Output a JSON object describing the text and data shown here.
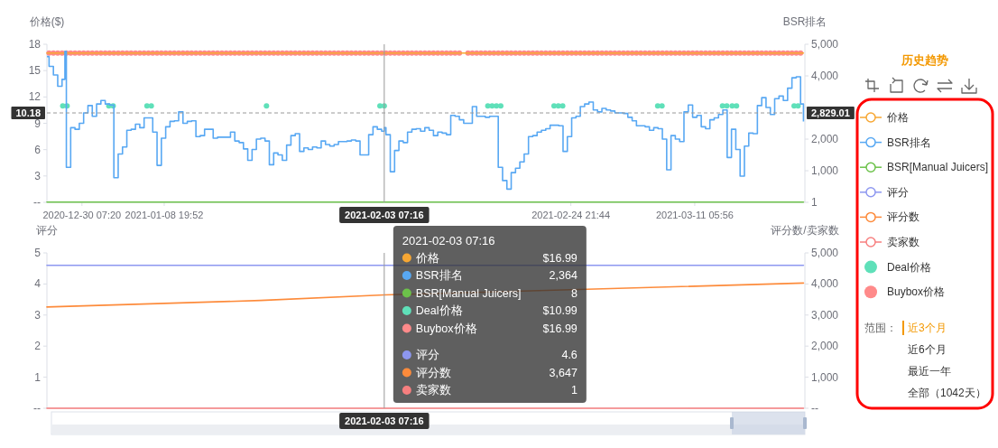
{
  "chart_data": [
    {
      "type": "line",
      "ylabel": "价格($)",
      "y2label": "BSR排名",
      "xlim": [
        "2020-12-26T06:00",
        "2021-03-24T00:00"
      ],
      "xticks": [
        {
          "value": "2020-12-30T07:20",
          "label": "2020-12-30 07:20"
        },
        {
          "value": "2021-01-08T19:52",
          "label": "2021-01-08 19:52"
        },
        {
          "value": "2021-02-24T21:44",
          "label": "2021-02-24 21:44"
        },
        {
          "value": "2021-03-11T05:56",
          "label": "2021-03-11 05:56"
        }
      ],
      "ylim": [
        0,
        18
      ],
      "yticks": [
        {
          "value": 0,
          "label": "--"
        },
        3,
        6,
        9,
        12,
        15,
        18
      ],
      "y2lim": [
        1,
        5000
      ],
      "y2ticks": [
        1,
        {
          "value": 1000,
          "label": "1,000"
        },
        {
          "value": 2000,
          "label": "2,000"
        },
        {
          "value": 3000,
          "label": null
        },
        {
          "value": 4000,
          "label": "4,000"
        },
        {
          "value": 5000,
          "label": "5,000"
        }
      ],
      "legend": "right",
      "x": [
        "2020-12-26T12:00",
        "2020-12-27T00:00",
        "2020-12-27T12:00",
        "2020-12-28T00:00",
        "2020-12-28T12:00",
        "2020-12-29T00:00",
        "2020-12-29T12:00",
        "2020-12-30T00:00",
        "2020-12-30T12:00",
        "2020-12-31T00:00",
        "2020-12-31T12:00",
        "2021-01-01T00:00",
        "2021-01-01T12:00",
        "2021-01-02T00:00",
        "2021-01-02T12:00",
        "2021-01-03T00:00",
        "2021-01-03T12:00",
        "2021-01-04T00:00",
        "2021-01-04T12:00",
        "2021-01-05T00:00",
        "2021-01-05T12:00",
        "2021-01-06T00:00",
        "2021-01-06T12:00",
        "2021-01-07T00:00",
        "2021-01-07T12:00",
        "2021-01-08T00:00",
        "2021-01-08T12:00",
        "2021-01-09T00:00",
        "2021-01-09T12:00",
        "2021-01-10T00:00",
        "2021-01-10T12:00",
        "2021-01-11T00:00",
        "2021-01-11T12:00",
        "2021-01-12T00:00",
        "2021-01-12T12:00",
        "2021-01-13T00:00",
        "2021-01-13T12:00",
        "2021-01-14T00:00",
        "2021-01-14T12:00",
        "2021-01-15T00:00",
        "2021-01-15T12:00",
        "2021-01-16T00:00",
        "2021-01-16T12:00",
        "2021-01-17T00:00",
        "2021-01-17T12:00",
        "2021-01-18T00:00",
        "2021-01-18T12:00",
        "2021-01-19T00:00",
        "2021-01-19T12:00",
        "2021-01-20T00:00",
        "2021-01-20T12:00",
        "2021-01-21T00:00",
        "2021-01-21T12:00",
        "2021-01-22T00:00",
        "2021-01-22T12:00",
        "2021-01-23T00:00",
        "2021-01-23T12:00",
        "2021-01-24T00:00",
        "2021-01-24T12:00",
        "2021-01-25T00:00",
        "2021-01-25T12:00",
        "2021-01-26T00:00",
        "2021-01-26T12:00",
        "2021-01-27T00:00",
        "2021-01-27T12:00",
        "2021-01-28T00:00",
        "2021-01-28T12:00",
        "2021-01-29T00:00",
        "2021-01-29T12:00",
        "2021-01-30T00:00",
        "2021-01-30T12:00",
        "2021-01-31T00:00",
        "2021-01-31T12:00",
        "2021-02-01T00:00",
        "2021-02-01T12:00",
        "2021-02-02T00:00",
        "2021-02-02T12:00",
        "2021-02-03T00:00",
        "2021-02-03T12:00",
        "2021-02-04T00:00",
        "2021-02-04T12:00",
        "2021-02-05T00:00",
        "2021-02-05T12:00",
        "2021-02-06T00:00",
        "2021-02-06T12:00",
        "2021-02-07T00:00",
        "2021-02-07T12:00",
        "2021-02-08T00:00",
        "2021-02-08T12:00",
        "2021-02-09T00:00",
        "2021-02-09T12:00",
        "2021-02-10T00:00",
        "2021-02-10T12:00",
        "2021-02-11T00:00",
        "2021-02-11T12:00",
        "2021-02-12T00:00",
        "2021-02-12T12:00",
        "2021-02-13T00:00",
        "2021-02-13T12:00",
        "2021-02-14T00:00",
        "2021-02-14T12:00",
        "2021-02-15T00:00",
        "2021-02-15T12:00",
        "2021-02-16T00:00",
        "2021-02-16T12:00",
        "2021-02-17T00:00",
        "2021-02-17T12:00",
        "2021-02-18T00:00",
        "2021-02-18T12:00",
        "2021-02-19T00:00",
        "2021-02-19T12:00",
        "2021-02-20T00:00",
        "2021-02-20T12:00",
        "2021-02-21T00:00",
        "2021-02-21T12:00",
        "2021-02-22T00:00",
        "2021-02-22T12:00",
        "2021-02-23T00:00",
        "2021-02-23T12:00",
        "2021-02-24T00:00",
        "2021-02-24T12:00",
        "2021-02-25T00:00",
        "2021-02-25T12:00",
        "2021-02-26T00:00",
        "2021-02-26T12:00",
        "2021-02-27T00:00",
        "2021-02-27T12:00",
        "2021-02-28T00:00",
        "2021-02-28T12:00",
        "2021-03-01T00:00",
        "2021-03-01T12:00",
        "2021-03-02T00:00",
        "2021-03-02T12:00",
        "2021-03-03T00:00",
        "2021-03-03T12:00",
        "2021-03-04T00:00",
        "2021-03-04T12:00",
        "2021-03-05T00:00",
        "2021-03-05T12:00",
        "2021-03-06T00:00",
        "2021-03-06T12:00",
        "2021-03-07T00:00",
        "2021-03-07T12:00",
        "2021-03-08T00:00",
        "2021-03-08T12:00",
        "2021-03-09T00:00",
        "2021-03-09T12:00",
        "2021-03-10T00:00",
        "2021-03-10T12:00",
        "2021-03-11T00:00",
        "2021-03-11T12:00",
        "2021-03-12T00:00",
        "2021-03-12T12:00",
        "2021-03-13T00:00",
        "2021-03-13T12:00",
        "2021-03-14T00:00",
        "2021-03-14T12:00",
        "2021-03-15T00:00",
        "2021-03-15T12:00",
        "2021-03-16T00:00",
        "2021-03-16T12:00",
        "2021-03-17T00:00",
        "2021-03-17T12:00",
        "2021-03-18T00:00",
        "2021-03-18T12:00",
        "2021-03-19T00:00",
        "2021-03-19T12:00",
        "2021-03-20T00:00",
        "2021-03-20T12:00",
        "2021-03-21T00:00",
        "2021-03-21T12:00",
        "2021-03-22T00:00",
        "2021-03-22T12:00",
        "2021-03-23T00:00",
        "2021-03-23T12:00"
      ],
      "series": [
        {
          "name": "价格",
          "color": "#f7a733",
          "x": [
            "2020-12-26T06:00",
            "2021-03-23T20:00"
          ],
          "values": [
            16.99,
            16.99
          ]
        },
        {
          "name": "BSR排名",
          "type": "step",
          "axis": "y2",
          "color": "#58a8f3",
          "x": [
            "2020-12-26T06:00",
            "2020-12-26T12:00",
            "2020-12-27T00:00",
            "2020-12-27T12:00",
            "2020-12-28T00:00",
            "2020-12-28T08:00",
            "2020-12-28T12:00",
            "2020-12-29T00:00",
            "2020-12-29T12:00",
            "2020-12-30T00:00",
            "2020-12-30T12:00",
            "2020-12-31T00:00",
            "2020-12-31T12:00",
            "2021-01-01T00:00",
            "2021-01-01T12:00",
            "2021-01-02T00:00",
            "2021-01-02T12:00",
            "2021-01-03T00:00",
            "2021-01-03T12:00",
            "2021-01-04T00:00",
            "2021-01-04T12:00",
            "2021-01-05T00:00",
            "2021-01-05T12:00",
            "2021-01-06T00:00",
            "2021-01-06T12:00",
            "2021-01-07T00:00",
            "2021-01-07T12:00",
            "2021-01-08T00:00",
            "2021-01-08T12:00",
            "2021-01-09T00:00",
            "2021-01-09T12:00",
            "2021-01-10T00:00",
            "2021-01-10T12:00",
            "2021-01-11T00:00",
            "2021-01-11T12:00",
            "2021-01-12T00:00",
            "2021-01-12T12:00",
            "2021-01-13T00:00",
            "2021-01-13T12:00",
            "2021-01-14T00:00",
            "2021-01-14T12:00",
            "2021-01-15T00:00",
            "2021-01-15T12:00",
            "2021-01-16T00:00",
            "2021-01-16T12:00",
            "2021-01-17T00:00",
            "2021-01-17T12:00",
            "2021-01-18T00:00",
            "2021-01-18T12:00",
            "2021-01-19T00:00",
            "2021-01-19T12:00",
            "2021-01-20T00:00",
            "2021-01-20T12:00",
            "2021-01-21T00:00",
            "2021-01-21T12:00",
            "2021-01-22T00:00",
            "2021-01-22T12:00",
            "2021-01-23T00:00",
            "2021-01-23T12:00",
            "2021-01-24T00:00",
            "2021-01-24T12:00",
            "2021-01-25T00:00",
            "2021-01-25T12:00",
            "2021-01-26T00:00",
            "2021-01-26T12:00",
            "2021-01-27T00:00",
            "2021-01-27T12:00",
            "2021-01-28T00:00",
            "2021-01-28T12:00",
            "2021-01-29T00:00",
            "2021-01-29T12:00",
            "2021-01-30T00:00",
            "2021-01-30T12:00",
            "2021-01-31T00:00",
            "2021-01-31T12:00",
            "2021-02-01T00:00",
            "2021-02-01T12:00",
            "2021-02-02T00:00",
            "2021-02-02T12:00",
            "2021-02-03T00:00",
            "2021-02-03T07:16",
            "2021-02-03T12:00",
            "2021-02-04T00:00",
            "2021-02-04T12:00",
            "2021-02-05T00:00",
            "2021-02-05T12:00",
            "2021-02-06T00:00",
            "2021-02-06T12:00",
            "2021-02-07T00:00",
            "2021-02-07T12:00",
            "2021-02-08T00:00",
            "2021-02-08T12:00",
            "2021-02-09T00:00",
            "2021-02-09T12:00",
            "2021-02-10T00:00",
            "2021-02-10T12:00",
            "2021-02-11T00:00",
            "2021-02-11T12:00",
            "2021-02-12T00:00",
            "2021-02-12T12:00",
            "2021-02-13T00:00",
            "2021-02-13T12:00",
            "2021-02-14T00:00",
            "2021-02-14T12:00",
            "2021-02-15T00:00",
            "2021-02-15T12:00",
            "2021-02-16T00:00",
            "2021-02-16T12:00",
            "2021-02-17T00:00",
            "2021-02-17T12:00",
            "2021-02-18T00:00",
            "2021-02-18T12:00",
            "2021-02-19T00:00",
            "2021-02-19T12:00",
            "2021-02-20T00:00",
            "2021-02-20T12:00",
            "2021-02-21T00:00",
            "2021-02-21T12:00",
            "2021-02-22T00:00",
            "2021-02-22T12:00",
            "2021-02-23T00:00",
            "2021-02-23T12:00",
            "2021-02-24T00:00",
            "2021-02-24T12:00",
            "2021-02-25T00:00",
            "2021-02-25T12:00",
            "2021-02-26T00:00",
            "2021-02-26T12:00",
            "2021-02-27T00:00",
            "2021-02-27T12:00",
            "2021-02-28T00:00",
            "2021-02-28T12:00",
            "2021-03-01T00:00",
            "2021-03-01T12:00",
            "2021-03-02T00:00",
            "2021-03-02T12:00",
            "2021-03-03T00:00",
            "2021-03-03T12:00",
            "2021-03-04T00:00",
            "2021-03-04T12:00",
            "2021-03-05T00:00",
            "2021-03-05T12:00",
            "2021-03-06T00:00",
            "2021-03-06T12:00",
            "2021-03-07T00:00",
            "2021-03-07T12:00",
            "2021-03-08T00:00",
            "2021-03-08T12:00",
            "2021-03-09T00:00",
            "2021-03-09T12:00",
            "2021-03-10T00:00",
            "2021-03-10T12:00",
            "2021-03-11T00:00",
            "2021-03-11T12:00",
            "2021-03-12T00:00",
            "2021-03-12T12:00",
            "2021-03-13T00:00",
            "2021-03-13T12:00",
            "2021-03-14T00:00",
            "2021-03-14T12:00",
            "2021-03-15T00:00",
            "2021-03-15T12:00",
            "2021-03-16T00:00",
            "2021-03-16T12:00",
            "2021-03-17T00:00",
            "2021-03-17T12:00",
            "2021-03-18T00:00",
            "2021-03-18T12:00",
            "2021-03-19T00:00",
            "2021-03-19T12:00",
            "2021-03-20T00:00",
            "2021-03-20T12:00",
            "2021-03-21T00:00",
            "2021-03-21T12:00",
            "2021-03-22T00:00",
            "2021-03-22T12:00",
            "2021-03-23T00:00",
            "2021-03-23T12:00",
            "2021-03-23T20:00"
          ],
          "values": [
            4610,
            4300,
            4030,
            3670,
            3890,
            4780,
            1110,
            2360,
            2310,
            2500,
            2830,
            3060,
            2720,
            3110,
            3220,
            3110,
            3080,
            780,
            1530,
            1750,
            2280,
            2310,
            2470,
            2360,
            2670,
            2670,
            2220,
            1170,
            2030,
            2390,
            2560,
            2580,
            2860,
            2500,
            2560,
            2580,
            2080,
            2110,
            2310,
            2310,
            2030,
            2060,
            2060,
            2060,
            2220,
            1940,
            1890,
            1690,
            1330,
            1670,
            2000,
            2030,
            1940,
            1190,
            1560,
            1500,
            1330,
            1810,
            2110,
            2170,
            1610,
            1720,
            1670,
            1750,
            1720,
            1940,
            1830,
            1780,
            1830,
            1920,
            1920,
            1940,
            1970,
            1940,
            1500,
            1500,
            2140,
            2390,
            2310,
            2250,
            2364,
            2140,
            970,
            1640,
            1940,
            1890,
            2220,
            2310,
            2330,
            2250,
            2360,
            2280,
            2110,
            2220,
            2190,
            2140,
            2750,
            2720,
            2610,
            2500,
            2500,
            3030,
            2720,
            2720,
            2690,
            2720,
            2720,
            1110,
            690,
            420,
            940,
            1080,
            1280,
            1530,
            2080,
            2110,
            2220,
            2280,
            2330,
            2440,
            2440,
            2420,
            1610,
            2080,
            2670,
            2720,
            3030,
            3110,
            3170,
            2920,
            2860,
            2970,
            2920,
            2890,
            2830,
            2830,
            2810,
            2690,
            2580,
            2420,
            2420,
            2390,
            2280,
            2360,
            2330,
            2000,
            1030,
            2110,
            2000,
            1920,
            2860,
            3080,
            2690,
            2750,
            2390,
            2330,
            2610,
            2670,
            2780,
            2920,
            1420,
            2310,
            1670,
            830,
            1780,
            2190,
            2170,
            3060,
            3310,
            3000,
            2780,
            3280,
            3360,
            3220,
            3610,
            3940,
            3970,
            3110,
            2560
          ]
        },
        {
          "name": "BSR[Manual Juicers]",
          "axis": "y2",
          "color": "#6cc24a",
          "x": [
            "2020-12-26T06:00",
            "2021-02-03T07:16",
            "2021-03-23T20:00"
          ],
          "values": [
            8,
            8,
            8
          ]
        },
        {
          "name": "Deal价格",
          "type": "scatter",
          "marker": "circle",
          "color": "#5fe0b9",
          "x": [
            "2020-12-28T02:00",
            "2020-12-28T14:00",
            "2021-01-02T10:00",
            "2021-01-02T22:00",
            "2021-01-06T20:00",
            "2021-01-07T08:00",
            "2021-01-20T16:00",
            "2021-02-02T19:16",
            "2021-02-03T07:16",
            "2021-02-15T07:00",
            "2021-02-15T19:00",
            "2021-02-16T07:00",
            "2021-02-16T19:00",
            "2021-02-22T23:00",
            "2021-02-23T11:00",
            "2021-02-23T23:00",
            "2021-03-06T23:00",
            "2021-03-07T11:00",
            "2021-03-14T11:00",
            "2021-03-14T23:00",
            "2021-03-15T14:00",
            "2021-03-16T02:00",
            "2021-03-22T18:00",
            "2021-03-23T05:00"
          ],
          "values": [
            10.99,
            10.99,
            10.99,
            10.99,
            10.99,
            10.99,
            10.99,
            10.99,
            10.99,
            10.99,
            10.99,
            10.99,
            10.99,
            10.99,
            10.99,
            10.99,
            10.99,
            10.99,
            10.99,
            10.99,
            10.99,
            10.99,
            10.99,
            10.99
          ]
        },
        {
          "name": "Buybox价格",
          "type": "scatter",
          "marker": "circle",
          "color": "#ff8a8a",
          "values": [
            16.99,
            16.99,
            16.99,
            16.99,
            16.99,
            16.99,
            16.99,
            16.99,
            16.99,
            16.99,
            16.99,
            16.99,
            16.99,
            16.99,
            16.99,
            16.99,
            16.99,
            16.99,
            16.99,
            16.99,
            16.99,
            16.99,
            16.99,
            16.99,
            16.99,
            16.99,
            16.99,
            16.99,
            16.99,
            16.99,
            16.99,
            16.99,
            16.99,
            16.99,
            16.99,
            16.99,
            16.99,
            16.99,
            16.99,
            16.99,
            16.99,
            16.99,
            16.99,
            16.99,
            16.99,
            16.99,
            16.99,
            16.99,
            16.99,
            16.99,
            16.99,
            16.99,
            16.99,
            16.99,
            16.99,
            16.99,
            16.99,
            16.99,
            16.99,
            16.99,
            16.99,
            16.99,
            16.99,
            16.99,
            16.99,
            16.99,
            16.99,
            16.99,
            16.99,
            16.99,
            16.99,
            16.99,
            16.99,
            16.99,
            16.99,
            16.99,
            16.99,
            16.99,
            16.99,
            16.99,
            16.99,
            16.99,
            16.99,
            16.99,
            16.99,
            16.99,
            16.99,
            16.99,
            16.99,
            16.99,
            16.99,
            16.99,
            16.99,
            16.99,
            16.99,
            16.99,
            null,
            16.99,
            16.99,
            16.99,
            16.99,
            16.99,
            16.99,
            16.99,
            16.99,
            16.99,
            16.99,
            16.99,
            16.99,
            16.99,
            16.99,
            16.99,
            16.99,
            16.99,
            16.99,
            16.99,
            16.99,
            16.99,
            16.99,
            16.99,
            16.99,
            16.99,
            16.99,
            16.99,
            16.99,
            16.99,
            16.99,
            16.99,
            16.99,
            16.99,
            16.99,
            16.99,
            16.99,
            16.99,
            16.99,
            16.99,
            16.99,
            16.99,
            16.99,
            16.99,
            16.99,
            16.99,
            16.99,
            16.99,
            16.99,
            16.99,
            16.99,
            16.99,
            16.99,
            16.99,
            16.99,
            16.99,
            16.99,
            16.99,
            16.99,
            16.99,
            16.99,
            16.99,
            16.99,
            16.99,
            16.99,
            16.99,
            16.99,
            16.99,
            16.99,
            16.99,
            16.99,
            16.99,
            16.99,
            16.99,
            16.99,
            16.99,
            16.99,
            16.99,
            16.99
          ]
        }
      ],
      "ref_lines": [
        {
          "axis": "x",
          "value": "2021-02-03T07:16",
          "label": "2021-02-03 07:16",
          "color": "#999999",
          "line_style": "solid"
        },
        {
          "axis": "y",
          "value": 10.18,
          "label": "10.18",
          "color": "#999999",
          "line_style": "dashed"
        }
      ],
      "annotations": [
        "2021-02-03 07:16",
        "$16.99",
        "2,364",
        "8",
        "$10.99",
        "$16.99",
        {
          "text": "2,829.01",
          "x": "2021-03-24T00:00",
          "y": 10.18
        }
      ]
    },
    {
      "type": "line",
      "ylabel": "评分",
      "y2label": "评分数/卖家数",
      "tick_labels": "y",
      "xlim": [
        "2020-12-26T06:00",
        "2021-03-24T00:00"
      ],
      "ylim": [
        0,
        5
      ],
      "yticks": [
        {
          "value": 0,
          "label": "--"
        },
        1,
        2,
        3,
        4,
        5
      ],
      "y2lim": [
        0,
        5000
      ],
      "y2ticks": [
        {
          "value": 0,
          "label": "--"
        },
        {
          "value": 1000,
          "label": "1,000"
        },
        {
          "value": 2000,
          "label": "2,000"
        },
        {
          "value": 3000,
          "label": "3,000"
        },
        {
          "value": 4000,
          "label": "4,000"
        },
        {
          "value": 5000,
          "label": "5,000"
        }
      ],
      "legend": "right",
      "series": [
        {
          "name": "评分",
          "color": "#8d97f0",
          "x": [
            "2020-12-26T06:00",
            "2021-03-23T20:00"
          ],
          "values": [
            4.6,
            4.6
          ]
        },
        {
          "name": "评分数",
          "axis": "y2",
          "color": "#fd8b3b",
          "x": [
            "2020-12-26T06:00",
            "2021-01-20T00:00",
            "2021-02-03T07:16",
            "2021-03-01T12:00",
            "2021-03-23T20:00"
          ],
          "values": [
            3260,
            3470,
            3647,
            3850,
            4030
          ]
        },
        {
          "name": "卖家数",
          "axis": "y2",
          "color": "#f77f7f",
          "x": [
            "2020-12-26T06:00",
            "2021-02-03T07:16",
            "2021-03-23T20:00"
          ],
          "values": [
            1,
            1,
            1
          ]
        }
      ],
      "ref_lines": [
        {
          "axis": "x",
          "value": "2021-02-03T07:16",
          "label": "2021-02-03 07:16",
          "color": "#999999",
          "line_style": "solid"
        }
      ],
      "annotations": [
        "4.6",
        "3,647",
        "1"
      ]
    },
    {
      "type": "other",
      "title": "历史趋势",
      "annotations": [
        "范围：",
        "近3个月",
        "近6个月",
        "最近一年",
        "全部（1042天）"
      ]
    }
  ]
}
